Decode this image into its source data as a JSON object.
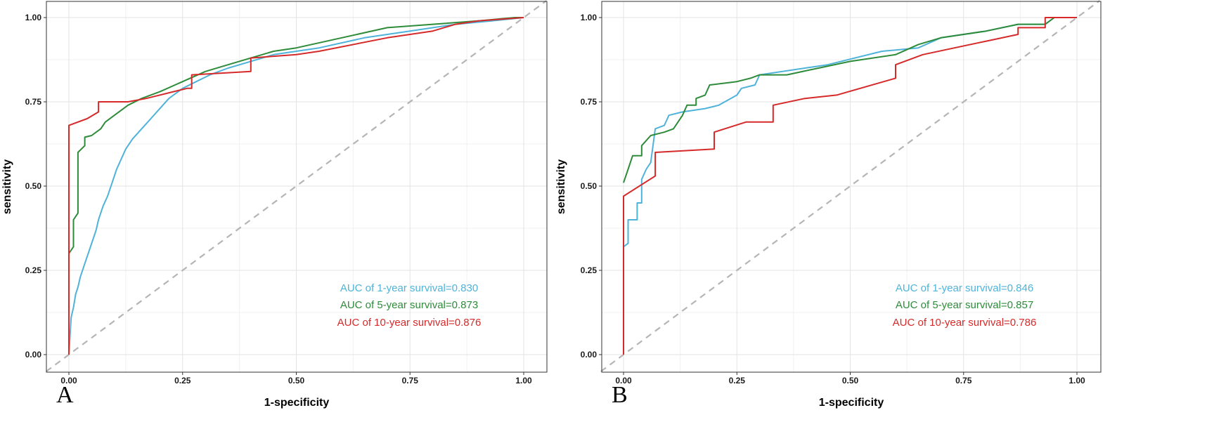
{
  "chart_data": [
    {
      "type": "line",
      "panel_label": "A",
      "xlabel": "1-specificity",
      "ylabel": "sensitivity",
      "xlim": [
        0,
        1
      ],
      "ylim": [
        0,
        1
      ],
      "xticks": [
        "0.00",
        "0.25",
        "0.50",
        "0.75",
        "1.00"
      ],
      "yticks": [
        "0.00",
        "0.25",
        "0.50",
        "0.75",
        "1.00"
      ],
      "grid": true,
      "legend_position": "bottom-right",
      "series": [
        {
          "name": "1-year",
          "color": "#4fb3d9",
          "annotation": "AUC of 1-year survival=0.830",
          "points": [
            [
              0.0,
              0.0
            ],
            [
              0.005,
              0.11
            ],
            [
              0.01,
              0.14
            ],
            [
              0.015,
              0.18
            ],
            [
              0.02,
              0.2
            ],
            [
              0.025,
              0.23
            ],
            [
              0.035,
              0.27
            ],
            [
              0.045,
              0.31
            ],
            [
              0.055,
              0.35
            ],
            [
              0.06,
              0.37
            ],
            [
              0.065,
              0.4
            ],
            [
              0.075,
              0.44
            ],
            [
              0.085,
              0.47
            ],
            [
              0.095,
              0.51
            ],
            [
              0.105,
              0.55
            ],
            [
              0.115,
              0.58
            ],
            [
              0.125,
              0.61
            ],
            [
              0.14,
              0.64
            ],
            [
              0.16,
              0.67
            ],
            [
              0.18,
              0.7
            ],
            [
              0.2,
              0.73
            ],
            [
              0.22,
              0.76
            ],
            [
              0.25,
              0.79
            ],
            [
              0.28,
              0.81
            ],
            [
              0.31,
              0.83
            ],
            [
              0.35,
              0.85
            ],
            [
              0.4,
              0.87
            ],
            [
              0.45,
              0.89
            ],
            [
              0.55,
              0.91
            ],
            [
              0.65,
              0.94
            ],
            [
              0.75,
              0.96
            ],
            [
              0.85,
              0.98
            ],
            [
              0.93,
              0.99
            ],
            [
              1.0,
              1.0
            ]
          ]
        },
        {
          "name": "5-year",
          "color": "#2e8b3a",
          "annotation": "AUC of 5-year survival=0.873",
          "points": [
            [
              0.0,
              0.3
            ],
            [
              0.01,
              0.32
            ],
            [
              0.01,
              0.4
            ],
            [
              0.02,
              0.42
            ],
            [
              0.02,
              0.6
            ],
            [
              0.035,
              0.62
            ],
            [
              0.035,
              0.645
            ],
            [
              0.05,
              0.65
            ],
            [
              0.06,
              0.66
            ],
            [
              0.07,
              0.67
            ],
            [
              0.08,
              0.69
            ],
            [
              0.1,
              0.71
            ],
            [
              0.13,
              0.74
            ],
            [
              0.16,
              0.76
            ],
            [
              0.2,
              0.78
            ],
            [
              0.25,
              0.81
            ],
            [
              0.3,
              0.84
            ],
            [
              0.35,
              0.86
            ],
            [
              0.4,
              0.88
            ],
            [
              0.45,
              0.9
            ],
            [
              0.5,
              0.91
            ],
            [
              0.6,
              0.94
            ],
            [
              0.7,
              0.97
            ],
            [
              0.8,
              0.98
            ],
            [
              0.9,
              0.99
            ],
            [
              0.98,
              1.0
            ],
            [
              1.0,
              1.0
            ]
          ]
        },
        {
          "name": "10-year",
          "color": "#d62a2a",
          "annotation": "AUC of 10-year survival=0.876",
          "points": [
            [
              0.0,
              0.0
            ],
            [
              0.0,
              0.68
            ],
            [
              0.04,
              0.7
            ],
            [
              0.065,
              0.72
            ],
            [
              0.065,
              0.75
            ],
            [
              0.13,
              0.75
            ],
            [
              0.17,
              0.76
            ],
            [
              0.26,
              0.79
            ],
            [
              0.27,
              0.79
            ],
            [
              0.27,
              0.83
            ],
            [
              0.4,
              0.84
            ],
            [
              0.4,
              0.88
            ],
            [
              0.5,
              0.89
            ],
            [
              0.55,
              0.9
            ],
            [
              0.7,
              0.94
            ],
            [
              0.8,
              0.96
            ],
            [
              0.85,
              0.98
            ],
            [
              0.9,
              0.99
            ],
            [
              1.0,
              1.0
            ]
          ]
        }
      ]
    },
    {
      "type": "line",
      "panel_label": "B",
      "xlabel": "1-specificity",
      "ylabel": "sensitivity",
      "xlim": [
        0,
        1
      ],
      "ylim": [
        0,
        1
      ],
      "xticks": [
        "0.00",
        "0.25",
        "0.50",
        "0.75",
        "1.00"
      ],
      "yticks": [
        "0.00",
        "0.25",
        "0.50",
        "0.75",
        "1.00"
      ],
      "grid": true,
      "legend_position": "bottom-right",
      "series": [
        {
          "name": "1-year",
          "color": "#4fb3d9",
          "annotation": "AUC of 1-year survival=0.846",
          "points": [
            [
              0.0,
              0.32
            ],
            [
              0.01,
              0.33
            ],
            [
              0.01,
              0.4
            ],
            [
              0.03,
              0.4
            ],
            [
              0.03,
              0.45
            ],
            [
              0.04,
              0.45
            ],
            [
              0.04,
              0.52
            ],
            [
              0.05,
              0.55
            ],
            [
              0.06,
              0.57
            ],
            [
              0.07,
              0.67
            ],
            [
              0.09,
              0.68
            ],
            [
              0.1,
              0.71
            ],
            [
              0.13,
              0.72
            ],
            [
              0.18,
              0.73
            ],
            [
              0.21,
              0.74
            ],
            [
              0.25,
              0.77
            ],
            [
              0.26,
              0.79
            ],
            [
              0.29,
              0.8
            ],
            [
              0.3,
              0.83
            ],
            [
              0.4,
              0.85
            ],
            [
              0.45,
              0.86
            ],
            [
              0.57,
              0.9
            ],
            [
              0.65,
              0.91
            ],
            [
              0.7,
              0.94
            ],
            [
              0.8,
              0.96
            ],
            [
              0.87,
              0.98
            ],
            [
              0.93,
              0.98
            ],
            [
              0.95,
              1.0
            ],
            [
              1.0,
              1.0
            ]
          ]
        },
        {
          "name": "5-year",
          "color": "#2e8b3a",
          "annotation": "AUC of 5-year survival=0.857",
          "points": [
            [
              0.0,
              0.51
            ],
            [
              0.01,
              0.55
            ],
            [
              0.02,
              0.59
            ],
            [
              0.04,
              0.59
            ],
            [
              0.04,
              0.62
            ],
            [
              0.06,
              0.65
            ],
            [
              0.09,
              0.66
            ],
            [
              0.11,
              0.67
            ],
            [
              0.13,
              0.71
            ],
            [
              0.14,
              0.74
            ],
            [
              0.16,
              0.74
            ],
            [
              0.16,
              0.76
            ],
            [
              0.18,
              0.77
            ],
            [
              0.19,
              0.8
            ],
            [
              0.25,
              0.81
            ],
            [
              0.28,
              0.82
            ],
            [
              0.3,
              0.83
            ],
            [
              0.36,
              0.83
            ],
            [
              0.43,
              0.85
            ],
            [
              0.5,
              0.87
            ],
            [
              0.6,
              0.89
            ],
            [
              0.65,
              0.92
            ],
            [
              0.7,
              0.94
            ],
            [
              0.8,
              0.96
            ],
            [
              0.87,
              0.98
            ],
            [
              0.93,
              0.98
            ],
            [
              0.95,
              1.0
            ],
            [
              1.0,
              1.0
            ]
          ]
        },
        {
          "name": "10-year",
          "color": "#d62a2a",
          "annotation": "AUC of 10-year survival=0.786",
          "points": [
            [
              0.0,
              0.0
            ],
            [
              0.0,
              0.47
            ],
            [
              0.07,
              0.53
            ],
            [
              0.07,
              0.6
            ],
            [
              0.2,
              0.61
            ],
            [
              0.2,
              0.66
            ],
            [
              0.27,
              0.69
            ],
            [
              0.33,
              0.69
            ],
            [
              0.33,
              0.74
            ],
            [
              0.4,
              0.76
            ],
            [
              0.47,
              0.77
            ],
            [
              0.6,
              0.82
            ],
            [
              0.6,
              0.86
            ],
            [
              0.66,
              0.89
            ],
            [
              0.73,
              0.91
            ],
            [
              0.8,
              0.93
            ],
            [
              0.87,
              0.95
            ],
            [
              0.87,
              0.97
            ],
            [
              0.93,
              0.97
            ],
            [
              0.93,
              1.0
            ],
            [
              1.0,
              1.0
            ]
          ]
        }
      ]
    }
  ]
}
